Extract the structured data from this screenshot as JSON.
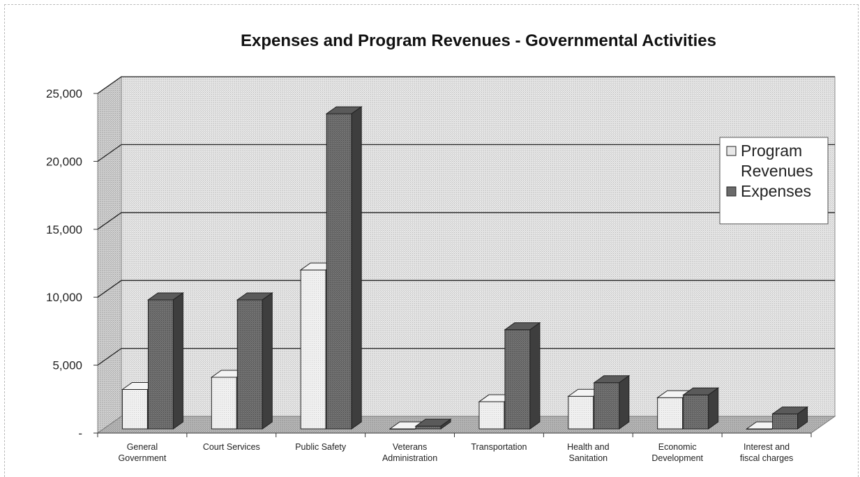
{
  "chart_data": {
    "type": "bar",
    "title": "Expenses and Program Revenues - Governmental Activities",
    "xlabel": "",
    "ylabel": "",
    "ylim": [
      0,
      25000
    ],
    "yticks": [
      "-",
      "5,000",
      "10,000",
      "15,000",
      "20,000",
      "25,000"
    ],
    "grid": true,
    "legend_position": "right",
    "categories": [
      [
        "General",
        "Government"
      ],
      [
        "Court Services"
      ],
      [
        "Public Safety"
      ],
      [
        "Veterans",
        "Administration"
      ],
      [
        "Transportation"
      ],
      [
        "Health and",
        "Sanitation"
      ],
      [
        "Economic",
        "Development"
      ],
      [
        "Interest and",
        "fiscal charges"
      ]
    ],
    "series": [
      {
        "name": "Program Revenues",
        "legend_lines": [
          "Program",
          "Revenues"
        ],
        "color": "#ececec",
        "values": [
          2900,
          3800,
          11700,
          0,
          2000,
          2400,
          2300,
          0
        ]
      },
      {
        "name": "Expenses",
        "legend_lines": [
          "Expenses"
        ],
        "color": "#6e6e6e",
        "values": [
          9500,
          9500,
          23200,
          200,
          7300,
          3400,
          2500,
          1100
        ]
      }
    ]
  }
}
